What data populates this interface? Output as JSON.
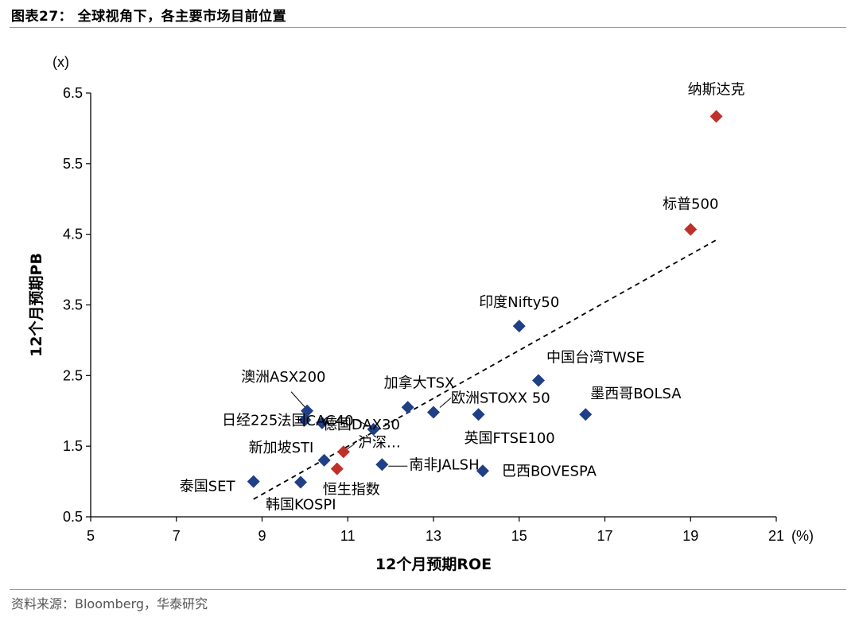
{
  "figure": {
    "title": "图表27： 全球视角下，各主要市场目前位置",
    "source": "资料来源：Bloomberg，华泰研究"
  },
  "colors": {
    "blue_marker": "#1f3f86",
    "red_marker": "#c0302a",
    "rule": "#7f9fbf"
  },
  "chart_data": {
    "type": "scatter",
    "xlabel": "12个月预期ROE",
    "ylabel": "12个月预期PB",
    "x_unit": "(%)",
    "y_unit": "(x)",
    "xlim": [
      5,
      21
    ],
    "ylim": [
      0.5,
      6.5
    ],
    "x_ticks": [
      "5",
      "7",
      "9",
      "11",
      "13",
      "15",
      "17",
      "19",
      "21"
    ],
    "y_ticks": [
      "0.5",
      "1.5",
      "2.5",
      "3.5",
      "4.5",
      "5.5",
      "6.5"
    ],
    "grid": false,
    "trendline": {
      "style": "dashed",
      "x": [
        8.8,
        19.6
      ],
      "y": [
        0.75,
        4.42
      ]
    },
    "points": [
      {
        "label": "纳斯达克",
        "x": 19.6,
        "y": 6.17,
        "color": "red"
      },
      {
        "label": "标普500",
        "x": 19.0,
        "y": 4.57,
        "color": "red"
      },
      {
        "label": "印度Nifty50",
        "x": 15.0,
        "y": 3.2,
        "color": "blue"
      },
      {
        "label": "中国台湾TWSE",
        "x": 15.45,
        "y": 2.43,
        "color": "blue"
      },
      {
        "label": "墨西哥BOLSA",
        "x": 16.55,
        "y": 1.95,
        "color": "blue"
      },
      {
        "label": "欧洲STOXX 50",
        "x": 13.0,
        "y": 1.98,
        "color": "blue"
      },
      {
        "label": "英国FTSE100",
        "x": 14.05,
        "y": 1.95,
        "color": "blue"
      },
      {
        "label": "加拿大TSX",
        "x": 12.4,
        "y": 2.05,
        "color": "blue"
      },
      {
        "label": "法国CAC40",
        "x": 11.6,
        "y": 1.74,
        "color": "blue"
      },
      {
        "label": "德国DAX30",
        "x": 10.4,
        "y": 1.83,
        "color": "blue"
      },
      {
        "label": "澳洲ASX200",
        "x": 10.05,
        "y": 2.0,
        "color": "blue"
      },
      {
        "label": "日经225",
        "x": 10.0,
        "y": 1.87,
        "color": "blue"
      },
      {
        "label": "新加坡STI",
        "x": 10.45,
        "y": 1.3,
        "color": "blue"
      },
      {
        "label": "沪深…",
        "x": 10.9,
        "y": 1.42,
        "color": "red"
      },
      {
        "label": "恒生指数",
        "x": 10.75,
        "y": 1.18,
        "color": "red"
      },
      {
        "label": "南非JALSH",
        "x": 11.8,
        "y": 1.24,
        "color": "blue"
      },
      {
        "label": "巴西BOVESPA",
        "x": 14.15,
        "y": 1.15,
        "color": "blue"
      },
      {
        "label": "泰国SET",
        "x": 8.8,
        "y": 1.0,
        "color": "blue"
      },
      {
        "label": "韩国KOSPI",
        "x": 9.9,
        "y": 0.99,
        "color": "blue"
      }
    ]
  }
}
